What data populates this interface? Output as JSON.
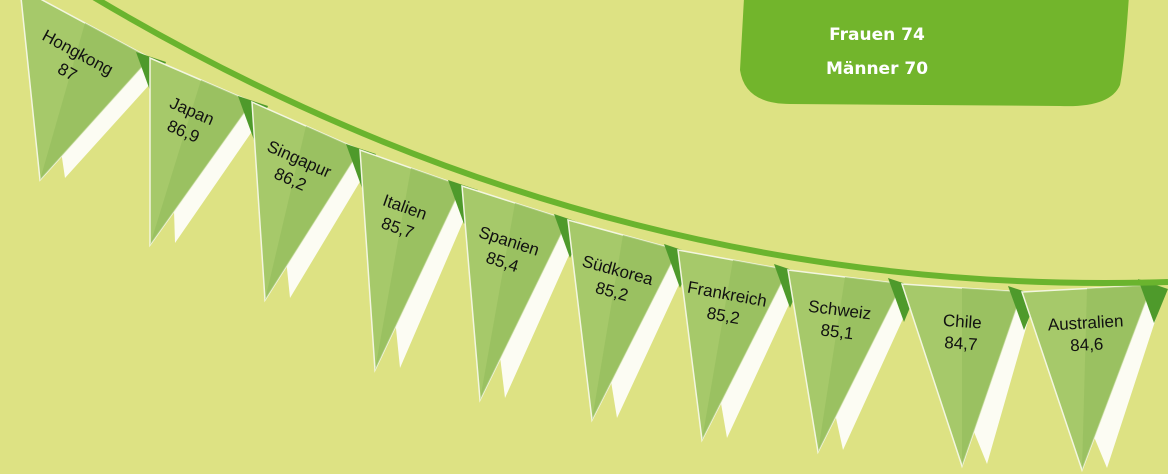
{
  "box": {
    "lines": [
      "Frauen 74",
      "Männer 70"
    ]
  },
  "pennants": [
    {
      "country": "Hongkong",
      "value": "87"
    },
    {
      "country": "Japan",
      "value": "86,9"
    },
    {
      "country": "Singapur",
      "value": "86,2"
    },
    {
      "country": "Italien",
      "value": "85,7"
    },
    {
      "country": "Spanien",
      "value": "85,4"
    },
    {
      "country": "Südkorea",
      "value": "85,2"
    },
    {
      "country": "Frankreich",
      "value": "85,2"
    },
    {
      "country": "Schweiz",
      "value": "85,1"
    },
    {
      "country": "Chile",
      "value": "84,7"
    },
    {
      "country": "Australien",
      "value": "84,6"
    }
  ]
}
